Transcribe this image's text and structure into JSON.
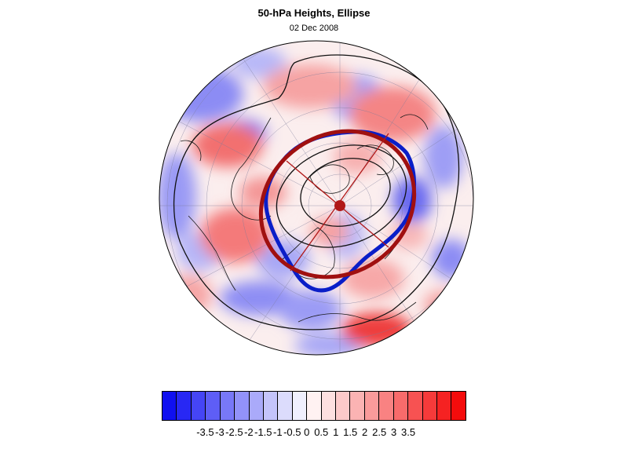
{
  "header": {
    "title": "50-hPa Heights, Ellipse",
    "date": "02 Dec 2008"
  },
  "map": {
    "projection": "north-polar-stereographic",
    "field": "height anomaly shading",
    "contour_color": "#000000",
    "ellipse_fit_color": "#a01010",
    "vortex_edge_color": "#0a1ec8",
    "center_marker_color": "#b01818"
  },
  "colorbar": {
    "colors": [
      "#1010f0",
      "#2828f4",
      "#4545f5",
      "#5e5ef6",
      "#7878f8",
      "#9292f9",
      "#aaaafa",
      "#c4c4fb",
      "#dcdcfc",
      "#f0f0fe",
      "#fff2f2",
      "#fde0e0",
      "#fccaca",
      "#fbb3b3",
      "#fa9b9b",
      "#f98282",
      "#f86b6b",
      "#f75252",
      "#f63a3a",
      "#f52222",
      "#f40c0c"
    ],
    "labels": [
      "-3.5",
      "-3",
      "-2.5",
      "-2",
      "-1.5",
      "-1",
      "-0.5",
      "0",
      "0.5",
      "1",
      "1.5",
      "2",
      "2.5",
      "3",
      "3.5"
    ]
  }
}
